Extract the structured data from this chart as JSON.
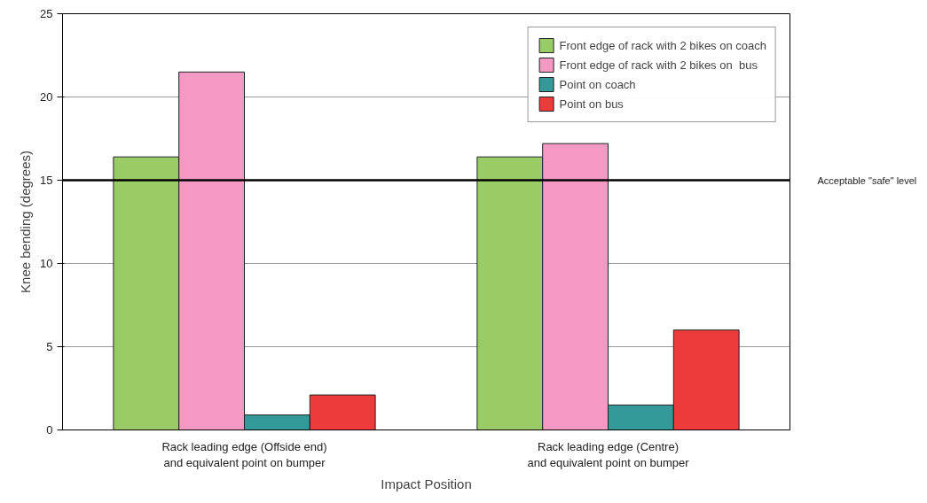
{
  "chart_data": {
    "type": "bar",
    "xlabel": "Impact Position",
    "ylabel": "Knee bending (degrees)",
    "categories": [
      "Rack leading edge (Offside end)\nand equivalent point on bumper",
      "Rack leading edge (Centre)\nand equivalent point on bumper"
    ],
    "series": [
      {
        "name": "Front edge of rack with 2 bikes on coach",
        "color": "#99cc66",
        "values": [
          16.4,
          16.4
        ]
      },
      {
        "name": "Front edge of rack with 2 bikes on  bus",
        "color": "#f399c3",
        "values": [
          21.5,
          17.2
        ]
      },
      {
        "name": "Point on coach",
        "color": "#339999",
        "values": [
          0.9,
          1.5
        ]
      },
      {
        "name": "Point on bus",
        "color": "#ee3a3a",
        "values": [
          2.1,
          6.0
        ]
      }
    ],
    "ylim": [
      0,
      25
    ],
    "yticks": [
      0,
      5,
      10,
      15,
      20,
      25
    ],
    "grid": "y",
    "legend": "top right",
    "ref_lines": [
      {
        "axis": "y",
        "value": 15,
        "label": "Acceptable \"safe\" level",
        "color": "#000000"
      }
    ]
  }
}
